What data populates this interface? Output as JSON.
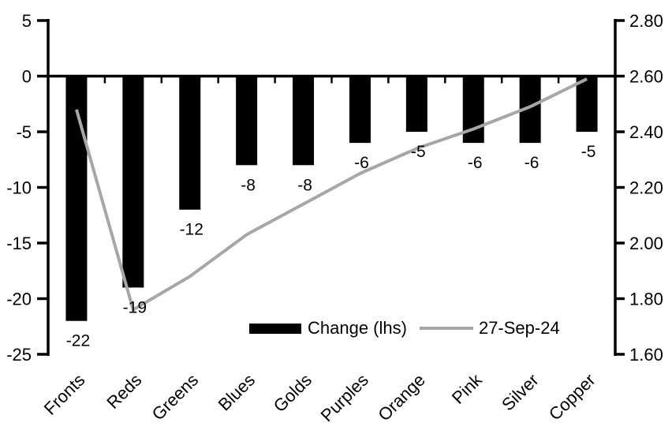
{
  "legend": {
    "bar_label": "Change (lhs)",
    "line_label": "27-Sep-24"
  },
  "colors": {
    "bar": "#000000",
    "line": "#a6a6a6",
    "axis": "#000000",
    "text": "#000000",
    "background": "#ffffff"
  },
  "chart_data": {
    "type": "bar+line",
    "categories": [
      "Fronts",
      "Reds",
      "Greens",
      "Blues",
      "Golds",
      "Purples",
      "Orange",
      "Pink",
      "Silver",
      "Copper"
    ],
    "series": [
      {
        "name": "Change (lhs)",
        "chart_type": "bar",
        "axis": "left",
        "color": "#000000",
        "values": [
          -22,
          -19,
          -12,
          -8,
          -8,
          -6,
          -5,
          -6,
          -6,
          -5
        ],
        "data_labels": [
          "-22",
          "-19",
          "-12",
          "-8",
          "-8",
          "-6",
          "-5",
          "-6",
          "-6",
          "-5"
        ]
      },
      {
        "name": "27-Sep-24",
        "chart_type": "line",
        "axis": "right",
        "color": "#a6a6a6",
        "values": [
          2.48,
          1.76,
          1.88,
          2.03,
          2.14,
          2.25,
          2.34,
          2.41,
          2.49,
          2.59
        ]
      }
    ],
    "left_axis": {
      "tick_labels": [
        "5",
        "0",
        "-5",
        "-10",
        "-15",
        "-20",
        "-25"
      ],
      "max": 5,
      "min": -25
    },
    "right_axis": {
      "tick_labels": [
        "2.80",
        "2.60",
        "2.40",
        "2.20",
        "2.00",
        "1.80",
        "1.60"
      ],
      "max": 2.8,
      "min": 1.6
    },
    "grid": false,
    "legend_position": "inside-bottom-center",
    "category_label_rotation_deg": -45
  }
}
